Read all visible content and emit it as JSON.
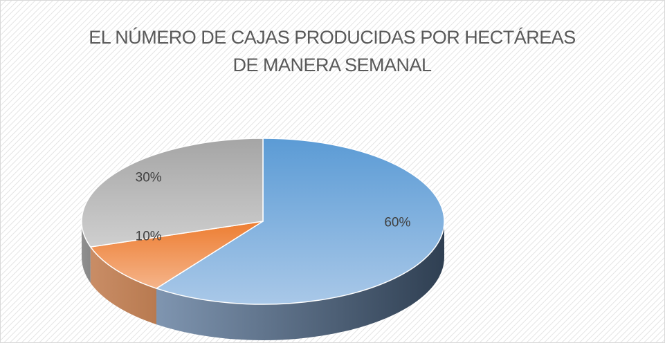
{
  "chart_data": {
    "type": "pie",
    "title": "EL NÚMERO DE CAJAS PRODUCIDAS POR HECTÁREAS  DE MANERA SEMANAL",
    "values": [
      60,
      10,
      30
    ],
    "value_labels": [
      "60%",
      "10%",
      "30%"
    ],
    "colors": [
      "#5b9bd5",
      "#ed7d31",
      "#a5a5a5"
    ]
  }
}
